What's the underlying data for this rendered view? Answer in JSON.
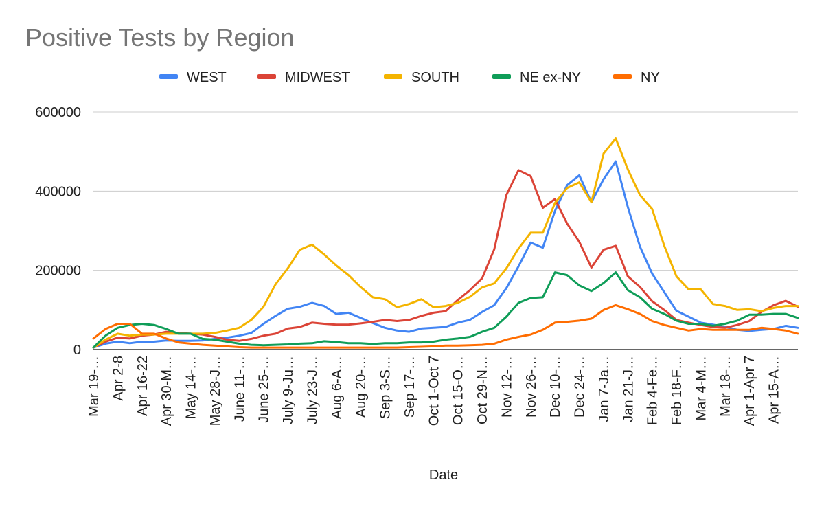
{
  "chart_data": {
    "type": "line",
    "title": "Positive Tests by Region",
    "xlabel": "Date",
    "ylabel": "",
    "ylim": [
      0,
      600000
    ],
    "yticks": [
      "600000",
      "400000",
      "200000",
      "0"
    ],
    "legend_position": "top",
    "grid": true,
    "tick_labels": [
      "Mar 19-…",
      "Apr 2-8",
      "Apr 16-22",
      "Apr 30-M…",
      "May 14-…",
      "May 28-J…",
      "June 11-…",
      "June 25-…",
      "July 9-Ju…",
      "July 23-J…",
      "Aug 6-A…",
      "Aug 20-…",
      "Sep 3-S…",
      "Sep 17-…",
      "Oct 1-Oct 7",
      "Oct 15-O…",
      "Oct 29-N…",
      "Nov 12-…",
      "Nov 26-…",
      "Dec 10-…",
      "Dec 24-…",
      "Jan 7-Ja…",
      "Jan 21-J…",
      "Feb 4-Fe…",
      "Feb 18-F…",
      "Mar 4-M…",
      "Mar 18-…",
      "Apr 1-Apr 7",
      "Apr 15-A…"
    ],
    "series": [
      {
        "name": "WEST",
        "color": "#4285F4",
        "values": [
          5000,
          15000,
          20000,
          16000,
          20000,
          20000,
          23000,
          22000,
          22000,
          23000,
          27000,
          30000,
          35000,
          42000,
          65000,
          85000,
          103000,
          108000,
          118000,
          110000,
          90000,
          93000,
          80000,
          67000,
          55000,
          48000,
          45000,
          53000,
          55000,
          57000,
          68000,
          75000,
          95000,
          112000,
          155000,
          210000,
          270000,
          257000,
          350000,
          415000,
          440000,
          372000,
          430000,
          475000,
          360000,
          260000,
          192000,
          145000,
          98000,
          83000,
          68000,
          63000,
          57000,
          50000,
          47000,
          50000,
          52000,
          60000,
          55000
        ]
      },
      {
        "name": "MIDWEST",
        "color": "#DB4437",
        "values": [
          5000,
          20000,
          30000,
          28000,
          35000,
          38000,
          45000,
          42000,
          40000,
          38000,
          32000,
          25000,
          22000,
          27000,
          35000,
          40000,
          53000,
          57000,
          68000,
          65000,
          63000,
          63000,
          66000,
          70000,
          75000,
          72000,
          75000,
          85000,
          93000,
          97000,
          125000,
          150000,
          180000,
          253000,
          390000,
          453000,
          438000,
          358000,
          380000,
          318000,
          272000,
          207000,
          252000,
          262000,
          185000,
          158000,
          122000,
          100000,
          75000,
          68000,
          62000,
          57000,
          55000,
          62000,
          72000,
          95000,
          112000,
          123000,
          108000
        ]
      },
      {
        "name": "SOUTH",
        "color": "#F4B400",
        "values": [
          5000,
          25000,
          40000,
          35000,
          38000,
          38000,
          40000,
          40000,
          40000,
          40000,
          42000,
          48000,
          55000,
          75000,
          108000,
          165000,
          205000,
          252000,
          265000,
          240000,
          212000,
          188000,
          158000,
          132000,
          127000,
          107000,
          115000,
          127000,
          107000,
          110000,
          118000,
          133000,
          157000,
          167000,
          205000,
          255000,
          295000,
          295000,
          370000,
          408000,
          422000,
          372000,
          495000,
          533000,
          455000,
          390000,
          355000,
          262000,
          185000,
          152000,
          152000,
          115000,
          110000,
          100000,
          102000,
          97000,
          105000,
          110000,
          110000
        ]
      },
      {
        "name": "NE ex-NY",
        "color": "#0F9D58",
        "values": [
          5000,
          35000,
          55000,
          62000,
          65000,
          62000,
          52000,
          40000,
          40000,
          27000,
          25000,
          20000,
          15000,
          12000,
          11000,
          12000,
          13000,
          15000,
          16000,
          21000,
          19000,
          16000,
          16000,
          14000,
          16000,
          16000,
          18000,
          18000,
          20000,
          25000,
          28000,
          32000,
          45000,
          55000,
          83000,
          118000,
          130000,
          132000,
          195000,
          188000,
          162000,
          148000,
          168000,
          195000,
          150000,
          132000,
          103000,
          90000,
          73000,
          65000,
          65000,
          60000,
          65000,
          73000,
          88000,
          88000,
          90000,
          90000,
          80000
        ]
      },
      {
        "name": "NY",
        "color": "#FF6D01",
        "values": [
          28000,
          52000,
          65000,
          65000,
          40000,
          40000,
          28000,
          18000,
          15000,
          12000,
          10000,
          8000,
          6000,
          5000,
          5000,
          5000,
          5000,
          5000,
          5000,
          5000,
          5000,
          5000,
          5000,
          5000,
          5000,
          5000,
          6000,
          7000,
          8000,
          10000,
          10000,
          11000,
          12000,
          15000,
          25000,
          32000,
          38000,
          50000,
          68000,
          70000,
          73000,
          78000,
          100000,
          112000,
          102000,
          90000,
          72000,
          62000,
          55000,
          48000,
          52000,
          50000,
          50000,
          50000,
          50000,
          55000,
          52000,
          48000,
          40000
        ]
      }
    ]
  }
}
